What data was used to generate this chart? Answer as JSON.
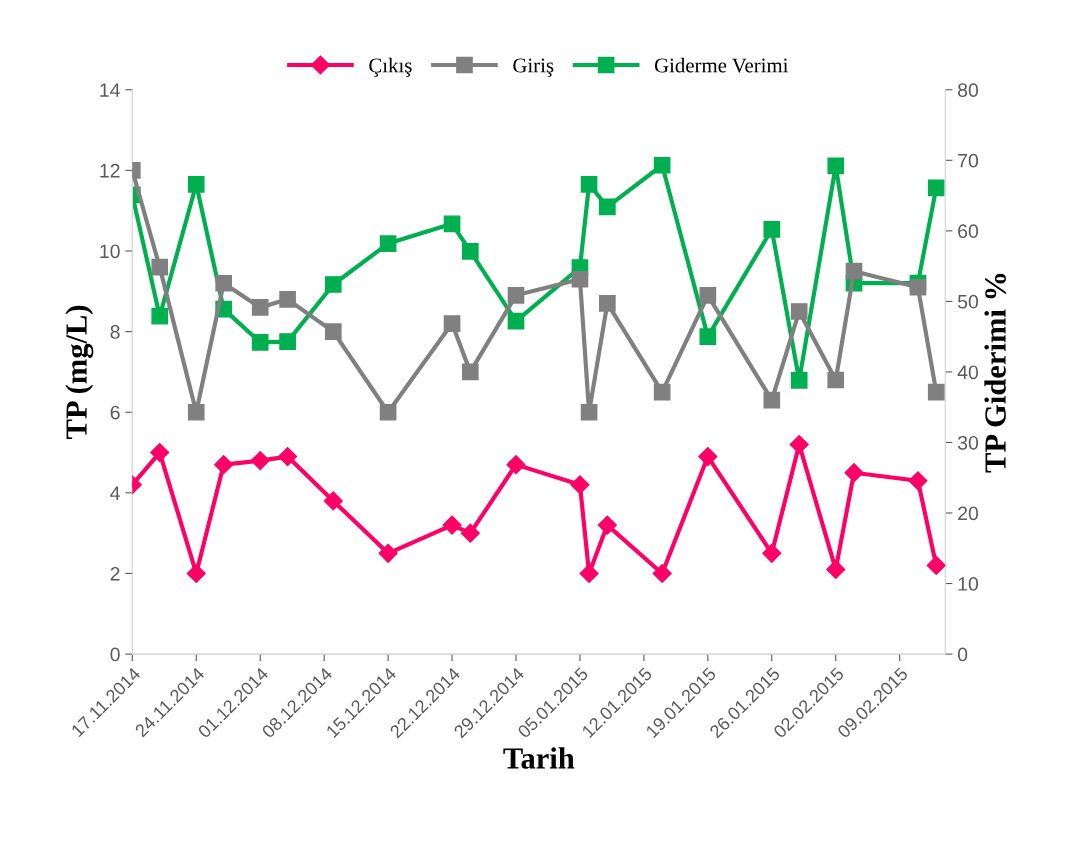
{
  "chart_data": {
    "type": "line",
    "xlabel": "Tarih",
    "ylabel": "TP (mg/L)",
    "y2label": "TP Giderimi %",
    "x": [
      "2014-11-17",
      "2014-11-20",
      "2014-11-24",
      "2014-11-27",
      "2014-12-01",
      "2014-12-04",
      "2014-12-09",
      "2014-12-15",
      "2014-12-22",
      "2014-12-24",
      "2014-12-29",
      "2015-01-05",
      "2015-01-06",
      "2015-01-08",
      "2015-01-14",
      "2015-01-19",
      "2015-01-26",
      "2015-01-29",
      "2015-02-02",
      "2015-02-04",
      "2015-02-11",
      "2015-02-13"
    ],
    "series": [
      {
        "name": "Çıkış",
        "color": "#ff0066",
        "marker": "diamond",
        "values": [
          4.2,
          5.0,
          2.0,
          4.7,
          4.8,
          4.9,
          3.8,
          2.5,
          3.2,
          3.0,
          4.7,
          4.2,
          2.0,
          3.2,
          2.0,
          4.9,
          2.5,
          5.2,
          2.1,
          4.5,
          4.3,
          2.2
        ]
      },
      {
        "name": "Giriş",
        "color": "#808080",
        "marker": "square",
        "values": [
          12.0,
          9.6,
          6.0,
          9.2,
          8.6,
          8.8,
          8.0,
          6.0,
          8.2,
          7.0,
          8.9,
          9.3,
          6.0,
          8.7,
          6.5,
          8.9,
          6.3,
          8.5,
          6.8,
          9.5,
          9.1,
          6.5
        ]
      },
      {
        "name": "Giderme Verimi",
        "color": "#00b050",
        "marker": "square",
        "axis": "y2",
        "values": [
          65.1,
          47.9,
          66.6,
          48.9,
          44.2,
          44.3,
          52.4,
          58.2,
          61.0,
          57.1,
          47.2,
          54.8,
          66.6,
          63.4,
          69.3,
          45.0,
          60.2,
          38.8,
          69.2,
          52.6,
          52.6,
          66.1
        ]
      }
    ],
    "xlim": [
      "2014-11-17",
      "2015-02-14"
    ],
    "xticks": [
      {
        "value": "2014-11-17",
        "label": "17.11.2014"
      },
      {
        "value": "2014-11-24",
        "label": "24.11.2014"
      },
      {
        "value": "2014-12-01",
        "label": "01.12.2014"
      },
      {
        "value": "2014-12-08",
        "label": "08.12.2014"
      },
      {
        "value": "2014-12-15",
        "label": "15.12.2014"
      },
      {
        "value": "2014-12-22",
        "label": "22.12.2014"
      },
      {
        "value": "2014-12-29",
        "label": "29.12.2014"
      },
      {
        "value": "2015-01-05",
        "label": "05.01.2015"
      },
      {
        "value": "2015-01-12",
        "label": "12.01.2015"
      },
      {
        "value": "2015-01-19",
        "label": "19.01.2015"
      },
      {
        "value": "2015-01-26",
        "label": "26.01.2015"
      },
      {
        "value": "2015-02-02",
        "label": "02.02.2015"
      },
      {
        "value": "2015-02-09",
        "label": "09.02.2015"
      }
    ],
    "ylim": [
      0,
      14
    ],
    "yticks": [
      0,
      2,
      4,
      6,
      8,
      10,
      12,
      14
    ],
    "y2lim": [
      0,
      80
    ],
    "y2ticks": [
      0,
      10,
      20,
      30,
      40,
      50,
      60,
      70,
      80
    ],
    "legend": "top",
    "grid": false,
    "line_style": "solid"
  }
}
